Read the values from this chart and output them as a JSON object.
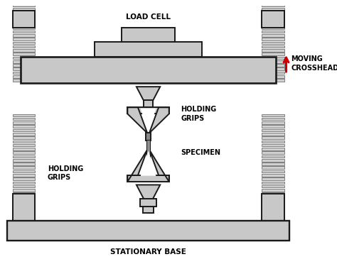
{
  "bg_color": "#ffffff",
  "gray_fill": "#c8c8c8",
  "dark_outline": "#1a1a1a",
  "screw_gray": "#b8b8b8",
  "red_arrow": "#cc0000",
  "label_color": "#000000",
  "labels": {
    "load_cell": "LOAD CELL",
    "holding_grips_top": "HOLDING\nGRIPS",
    "specimen": "SPECIMEN",
    "holding_grips_bot": "HOLDING\nGRIPS",
    "moving_crosshead": "MOVING\nCROSSHEAD",
    "stationary_base": "STATIONARY BASE"
  },
  "figsize": [
    4.74,
    3.79
  ],
  "dpi": 100
}
